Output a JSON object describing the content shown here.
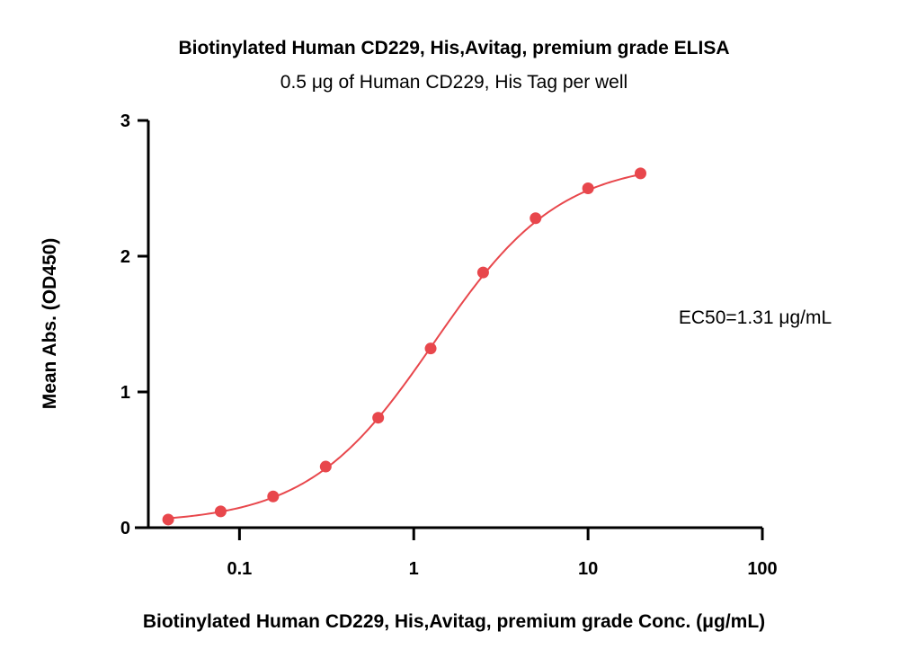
{
  "chart_data": {
    "type": "scatter",
    "title": "Biotinylated Human CD229, His,Avitag, premium grade ELISA",
    "subtitle": "0.5 μg of Human CD229, His Tag per well",
    "xlabel": "Biotinylated Human CD229, His,Avitag, premium grade Conc. (μg/mL)",
    "ylabel": "Mean Abs. (OD450)",
    "x_scale": "log",
    "xlim": [
      0.03,
      100
    ],
    "ylim": [
      0,
      3
    ],
    "x_ticks": [
      0.1,
      1,
      10,
      100
    ],
    "x_tick_labels": [
      "0.1",
      "1",
      "10",
      "100"
    ],
    "y_ticks": [
      0,
      1,
      2,
      3
    ],
    "y_tick_labels": [
      "0",
      "1",
      "2",
      "3"
    ],
    "grid": false,
    "series": [
      {
        "color": "#e8474c",
        "x": [
          0.039,
          0.078,
          0.156,
          0.3125,
          0.625,
          1.25,
          2.5,
          5,
          10,
          20
        ],
        "y": [
          0.06,
          0.12,
          0.23,
          0.45,
          0.81,
          1.32,
          1.88,
          2.28,
          2.5,
          2.61
        ]
      }
    ],
    "fit_curve": {
      "color": "#e8474c",
      "model": "4PL",
      "bottom": 0.03,
      "top": 2.7,
      "ec50": 1.31,
      "hill": 1.2
    },
    "annotations": [
      {
        "text": "EC50=1.31 μg/mL"
      }
    ]
  }
}
